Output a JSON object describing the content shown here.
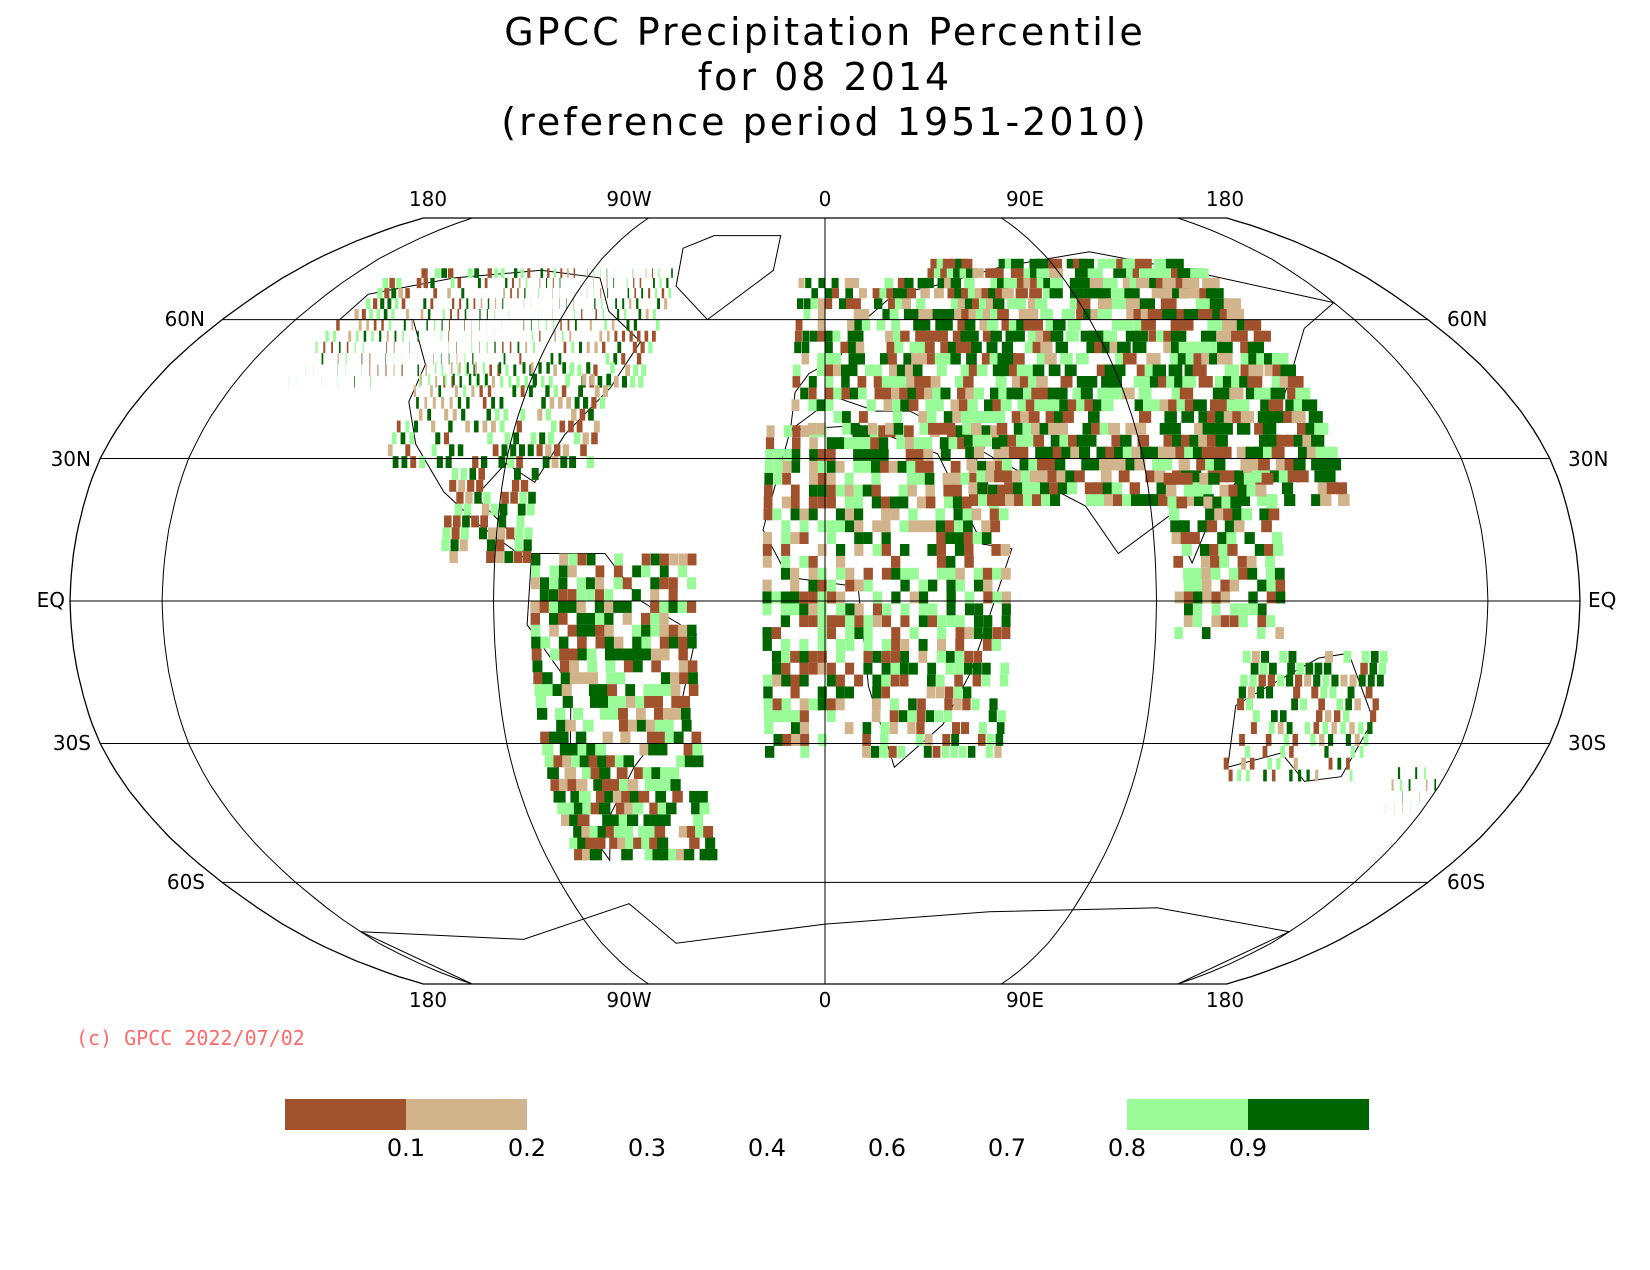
{
  "title": {
    "line1": "GPCC Precipitation Percentile",
    "line2": "for 08 2014",
    "line3": "(reference period 1951-2010)"
  },
  "map": {
    "projection": "robinson",
    "longitude_labels_top": [
      "180",
      "90W",
      "0",
      "90E",
      "180"
    ],
    "longitude_labels_bottom": [
      "180",
      "90W",
      "0",
      "90E",
      "180"
    ],
    "latitude_labels_left": [
      "60N",
      "30N",
      "EQ",
      "30S",
      "60S"
    ],
    "latitude_labels_right": [
      "60N",
      "30N",
      "EQ",
      "30S",
      "60S"
    ],
    "colors": {
      "lt_0.1": "#a0522d",
      "0.1_0.2": "#d2b48c",
      "0.8_0.9": "#98fb98",
      "gt_0.9": "#006400",
      "grid": "#000000"
    }
  },
  "copyright": {
    "text": "(c) GPCC 2022/07/02",
    "color": "#ff6a6a"
  },
  "legend": {
    "swatches": [
      {
        "range": "<0.1",
        "color": "#a0522d"
      },
      {
        "range": "0.1-0.2",
        "color": "#d2b48c"
      },
      {
        "range": "0.2-0.8",
        "color": "#ffffff"
      },
      {
        "range": "0.8-0.9",
        "color": "#98fb98"
      },
      {
        "range": ">0.9",
        "color": "#006400"
      }
    ],
    "ticks": [
      "0.1",
      "0.2",
      "0.3",
      "0.4",
      "0.6",
      "0.7",
      "0.8",
      "0.9"
    ]
  }
}
